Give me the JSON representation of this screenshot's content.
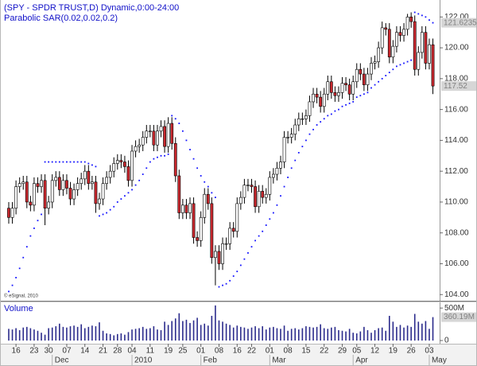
{
  "chart_data": {
    "type": "candlestick",
    "title": "(SPY - SPDR TRUST,D) Dynamic,0:00-24:00",
    "subtitle": "Parabolic SAR(0.02,0.02,0.2)",
    "copyright": "© eSignal, 2010",
    "ylim": [
      103.6,
      123.1
    ],
    "yticks": [
      {
        "value": 104,
        "label": "104.00"
      },
      {
        "value": 106,
        "label": "106.00"
      },
      {
        "value": 108,
        "label": "108.00"
      },
      {
        "value": 110,
        "label": "110.00"
      },
      {
        "value": 112,
        "label": "112.00"
      },
      {
        "value": 114,
        "label": "114.00"
      },
      {
        "value": 116,
        "label": "116.00"
      },
      {
        "value": 118,
        "label": "118.00"
      },
      {
        "value": 120,
        "label": "120.00"
      },
      {
        "value": 122,
        "label": "122.00"
      }
    ],
    "xticks": [
      {
        "value": 2,
        "label": "16"
      },
      {
        "value": 7,
        "label": "23"
      },
      {
        "value": 11,
        "label": "30"
      },
      {
        "value": 16,
        "label": "07"
      },
      {
        "value": 21,
        "label": "14"
      },
      {
        "value": 26,
        "label": "21"
      },
      {
        "value": 30,
        "label": "28"
      },
      {
        "value": 34,
        "label": "04"
      },
      {
        "value": 39,
        "label": "11"
      },
      {
        "value": 44,
        "label": "19"
      },
      {
        "value": 48,
        "label": "25"
      },
      {
        "value": 53,
        "label": "01"
      },
      {
        "value": 58,
        "label": "08"
      },
      {
        "value": 63,
        "label": "16"
      },
      {
        "value": 67,
        "label": "22"
      },
      {
        "value": 72,
        "label": "01"
      },
      {
        "value": 77,
        "label": "08"
      },
      {
        "value": 82,
        "label": "15"
      },
      {
        "value": 87,
        "label": "22"
      },
      {
        "value": 92,
        "label": "29"
      },
      {
        "value": 96,
        "label": "05"
      },
      {
        "value": 101,
        "label": "12"
      },
      {
        "value": 106,
        "label": "19"
      },
      {
        "value": 111,
        "label": "26"
      },
      {
        "value": 116,
        "label": "03"
      }
    ],
    "months": [
      {
        "value": 12,
        "label": "Dec"
      },
      {
        "value": 34,
        "label": "2010"
      },
      {
        "value": 53,
        "label": "Feb"
      },
      {
        "value": 72,
        "label": "Mar"
      },
      {
        "value": 95,
        "label": "Apr"
      },
      {
        "value": 116,
        "label": "May"
      }
    ],
    "up_color": "#ffffff",
    "down_color": "#c8282e",
    "candles": {
      "open": [
        109.6,
        109.0,
        109.6,
        111.0,
        111.2,
        111.3,
        110.0,
        109.8,
        111.2,
        111.0,
        111.4,
        109.6,
        110.0,
        111.4,
        111.6,
        110.8,
        111.4,
        110.9,
        110.2,
        110.8,
        111.2,
        111.5,
        112.0,
        111.2,
        111.3,
        109.9,
        110.2,
        111.2,
        111.6,
        112.0,
        112.5,
        112.7,
        112.6,
        112.3,
        111.4,
        113.3,
        113.6,
        113.7,
        114.2,
        114.6,
        114.6,
        113.7,
        114.6,
        114.9,
        113.6,
        115.1,
        113.8,
        111.7,
        109.3,
        109.8,
        109.3,
        109.9,
        107.7,
        107.5,
        109.0,
        110.5,
        109.9,
        106.4,
        106.8,
        106.0,
        107.3,
        107.3,
        108.3,
        108.1,
        109.9,
        110.3,
        111.1,
        111.1,
        111.0,
        109.7,
        110.7,
        110.3,
        110.5,
        111.6,
        111.8,
        112.2,
        112.6,
        114.2,
        114.2,
        114.4,
        115.0,
        115.4,
        115.4,
        115.6,
        116.5,
        117.0,
        116.8,
        116.2,
        117.0,
        117.8,
        117.1,
        116.9,
        117.1,
        117.7,
        117.6,
        117.0,
        117.8,
        118.6,
        118.3,
        117.6,
        118.3,
        119.0,
        119.1,
        120.0,
        121.3,
        121.2,
        119.4,
        120.1,
        121.0,
        120.8,
        121.2,
        122.0,
        121.7,
        118.6,
        119.7,
        121.0,
        119.0,
        120.2
      ],
      "high": [
        110.0,
        110.0,
        111.4,
        111.6,
        111.7,
        111.7,
        110.4,
        111.6,
        111.6,
        111.8,
        111.8,
        110.4,
        111.8,
        112.0,
        112.0,
        111.8,
        111.8,
        111.3,
        111.2,
        111.6,
        111.9,
        112.4,
        112.4,
        111.7,
        111.7,
        110.6,
        111.6,
        112.0,
        112.4,
        112.9,
        113.1,
        113.1,
        113.0,
        112.7,
        113.7,
        114.0,
        114.1,
        114.6,
        115.0,
        115.0,
        115.0,
        115.0,
        115.3,
        115.3,
        115.5,
        115.5,
        114.2,
        112.1,
        110.2,
        110.2,
        110.3,
        110.3,
        108.1,
        109.4,
        110.9,
        110.9,
        110.3,
        107.2,
        107.2,
        107.7,
        107.7,
        108.7,
        108.7,
        110.3,
        110.7,
        111.5,
        111.5,
        111.5,
        111.4,
        111.1,
        111.1,
        110.9,
        112.0,
        112.2,
        112.6,
        113.0,
        114.6,
        114.6,
        114.8,
        115.4,
        115.8,
        115.8,
        116.0,
        116.9,
        117.4,
        117.4,
        117.2,
        117.4,
        118.2,
        118.2,
        117.5,
        117.5,
        118.1,
        118.1,
        118.0,
        118.2,
        119.0,
        119.0,
        118.7,
        118.7,
        119.4,
        119.5,
        120.4,
        121.7,
        121.6,
        121.6,
        120.5,
        121.4,
        121.4,
        121.6,
        122.2,
        122.3,
        122.1,
        120.1,
        121.4,
        121.4,
        120.6,
        120.6
      ],
      "low": [
        108.6,
        108.6,
        109.2,
        110.6,
        110.8,
        109.6,
        109.4,
        109.4,
        110.6,
        110.6,
        108.5,
        109.2,
        109.6,
        111.0,
        110.4,
        110.4,
        110.5,
        109.8,
        109.8,
        110.4,
        110.8,
        111.1,
        110.8,
        110.8,
        109.3,
        109.5,
        109.8,
        110.8,
        111.2,
        111.6,
        112.1,
        112.2,
        111.9,
        111.0,
        111.0,
        112.9,
        113.2,
        113.3,
        113.8,
        114.2,
        113.3,
        113.3,
        114.2,
        113.2,
        113.2,
        113.4,
        111.3,
        108.9,
        108.9,
        108.9,
        108.9,
        107.3,
        107.1,
        107.1,
        108.6,
        109.5,
        106.0,
        104.6,
        105.6,
        105.6,
        106.9,
        106.9,
        107.7,
        107.7,
        109.5,
        109.9,
        110.7,
        110.6,
        109.3,
        109.3,
        109.9,
        109.9,
        110.1,
        111.2,
        111.4,
        111.8,
        112.2,
        113.8,
        113.8,
        114.0,
        114.6,
        115.0,
        115.0,
        115.2,
        116.1,
        116.4,
        115.8,
        115.8,
        116.6,
        116.7,
        116.5,
        116.5,
        116.7,
        117.2,
        116.6,
        116.6,
        117.4,
        117.9,
        117.2,
        117.2,
        117.9,
        118.6,
        118.7,
        119.6,
        120.8,
        119.0,
        119.0,
        119.7,
        120.4,
        120.4,
        120.8,
        121.3,
        118.2,
        118.2,
        119.3,
        118.6,
        118.6,
        117.0
      ],
      "close": [
        109.0,
        109.6,
        111.0,
        111.2,
        111.3,
        110.0,
        109.8,
        111.2,
        111.0,
        111.4,
        109.6,
        110.0,
        111.4,
        111.6,
        110.8,
        111.4,
        110.9,
        110.2,
        110.8,
        111.2,
        111.5,
        112.0,
        111.2,
        111.3,
        109.9,
        110.2,
        111.2,
        111.6,
        112.0,
        112.5,
        112.7,
        112.6,
        112.3,
        111.4,
        113.3,
        113.6,
        113.7,
        114.2,
        114.6,
        114.6,
        113.7,
        114.6,
        114.9,
        113.6,
        115.1,
        113.8,
        111.7,
        109.3,
        109.8,
        109.3,
        109.9,
        107.7,
        107.5,
        109.0,
        110.5,
        109.9,
        106.4,
        106.8,
        106.0,
        107.3,
        107.3,
        108.3,
        108.1,
        109.9,
        110.3,
        111.1,
        111.1,
        111.0,
        109.7,
        110.7,
        110.3,
        110.5,
        111.6,
        111.8,
        112.2,
        112.6,
        114.2,
        114.2,
        114.4,
        115.0,
        115.4,
        115.4,
        115.6,
        116.5,
        117.0,
        116.8,
        116.2,
        117.0,
        117.8,
        117.1,
        116.9,
        117.1,
        117.7,
        117.6,
        117.0,
        117.8,
        118.6,
        118.3,
        117.6,
        118.3,
        119.0,
        119.1,
        120.0,
        121.3,
        121.2,
        119.4,
        120.1,
        121.0,
        120.8,
        121.2,
        122.0,
        121.7,
        118.6,
        119.7,
        121.0,
        119.0,
        120.2,
        117.52
      ],
      "last_label": "117.52"
    },
    "sar": {
      "color": "#1414ff",
      "values": [
        104.2,
        104.6,
        105.1,
        105.7,
        106.4,
        107.1,
        107.8,
        108.3,
        108.8,
        109.2,
        112.6,
        112.6,
        112.6,
        112.6,
        112.6,
        112.6,
        112.6,
        112.6,
        112.6,
        112.6,
        112.6,
        112.6,
        112.5,
        112.4,
        112.3,
        109.1,
        109.2,
        109.3,
        109.5,
        109.7,
        110.0,
        110.2,
        110.4,
        110.6,
        110.8,
        111.1,
        111.4,
        111.8,
        112.2,
        112.6,
        112.8,
        112.9,
        113.0,
        113.0,
        113.1,
        115.6,
        115.4,
        115.1,
        114.6,
        114.0,
        113.4,
        112.8,
        112.2,
        111.7,
        111.3,
        111.0,
        110.6,
        110.3,
        104.5,
        104.6,
        104.7,
        104.9,
        105.2,
        105.5,
        105.9,
        106.3,
        106.7,
        107.1,
        107.5,
        107.8,
        108.1,
        108.5,
        108.9,
        109.3,
        109.8,
        110.4,
        111.0,
        111.6,
        112.2,
        112.7,
        113.2,
        113.6,
        114.0,
        114.4,
        114.7,
        115.0,
        115.2,
        115.4,
        115.6,
        115.7,
        115.9,
        116.0,
        116.2,
        116.3,
        116.4,
        116.5,
        116.8,
        116.9,
        117.0,
        117.1,
        117.4,
        117.6,
        117.8,
        118.0,
        118.2,
        118.4,
        118.6,
        118.8,
        118.9,
        119.0,
        119.1,
        119.2,
        122.3,
        122.2,
        122.1,
        122.0,
        121.8,
        121.6235
      ],
      "last_label": "121.6235"
    },
    "volume": {
      "title": "Volume",
      "color": "#2b2b8c",
      "ylim": [
        0,
        600
      ],
      "yticks": [
        {
          "value": 500,
          "label": "500M"
        },
        0
      ],
      "values": [
        180,
        170,
        190,
        160,
        200,
        210,
        190,
        170,
        150,
        120,
        90,
        190,
        200,
        220,
        260,
        210,
        200,
        220,
        230,
        210,
        250,
        190,
        210,
        230,
        220,
        280,
        150,
        110,
        100,
        80,
        100,
        110,
        90,
        130,
        170,
        180,
        190,
        210,
        180,
        190,
        220,
        170,
        160,
        290,
        240,
        300,
        340,
        420,
        300,
        320,
        270,
        310,
        350,
        240,
        260,
        230,
        380,
        540,
        310,
        290,
        260,
        240,
        200,
        230,
        210,
        200,
        180,
        200,
        220,
        190,
        220,
        170,
        200,
        210,
        190,
        180,
        230,
        150,
        180,
        190,
        170,
        190,
        220,
        210,
        200,
        210,
        250,
        190,
        180,
        200,
        210,
        160,
        150,
        140,
        180,
        120,
        110,
        140,
        210,
        160,
        120,
        160,
        190,
        200,
        150,
        380,
        290,
        210,
        240,
        200,
        230,
        210,
        410,
        290,
        260,
        300,
        180,
        360.19
      ],
      "last_label": "360.19M"
    }
  }
}
